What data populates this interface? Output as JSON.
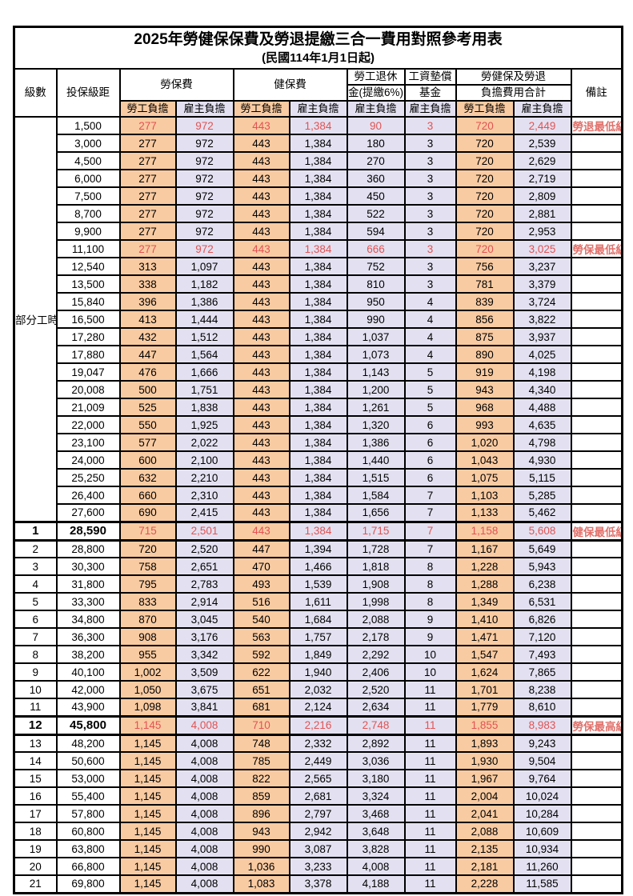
{
  "title": "2025年勞健保保費及勞退提繳三合一費用對照參考用表",
  "subtitle": "(民國114年1月1日起)",
  "header": {
    "level": "級數",
    "bracket": "投保級距",
    "labor_insurance": "勞保費",
    "health_insurance": "健保費",
    "pension_line1": "勞工退休",
    "pension_line2": "金(提繳6%)",
    "wage_fund_line1": "工資墊償",
    "wage_fund_line2": "基金",
    "total_line1": "勞健保及勞退",
    "total_line2": "負擔費用合計",
    "remark": "備註",
    "employee_share": "勞工負擔",
    "employer_share": "雇主負擔"
  },
  "part_time": {
    "label": "部分工時",
    "span": 23
  },
  "colors": {
    "employee_fill": "#F9CBA2",
    "employer_fill": "#E3E1F1",
    "highlight_red": "#E15353",
    "remark_red": "#E0716B",
    "border": "#000000"
  },
  "columns_order": [
    "級數",
    "投保級距",
    "勞保費-勞工負擔",
    "勞保費-雇主負擔",
    "健保費-勞工負擔",
    "健保費-雇主負擔",
    "勞工退休金(提繳6%)-雇主負擔",
    "工資墊償基金-雇主負擔",
    "合計-勞工負擔",
    "合計-雇主負擔",
    "備註"
  ],
  "rows": [
    {
      "lv": "",
      "amt": "1,500",
      "v": [
        "277",
        "972",
        "443",
        "1,384",
        "90",
        "3",
        "720",
        "2,449"
      ],
      "rm": "勞退最低級距",
      "red": true,
      "key": false
    },
    {
      "lv": "",
      "amt": "3,000",
      "v": [
        "277",
        "972",
        "443",
        "1,384",
        "180",
        "3",
        "720",
        "2,539"
      ],
      "rm": "",
      "red": false,
      "key": false
    },
    {
      "lv": "",
      "amt": "4,500",
      "v": [
        "277",
        "972",
        "443",
        "1,384",
        "270",
        "3",
        "720",
        "2,629"
      ],
      "rm": "",
      "red": false,
      "key": false
    },
    {
      "lv": "",
      "amt": "6,000",
      "v": [
        "277",
        "972",
        "443",
        "1,384",
        "360",
        "3",
        "720",
        "2,719"
      ],
      "rm": "",
      "red": false,
      "key": false
    },
    {
      "lv": "",
      "amt": "7,500",
      "v": [
        "277",
        "972",
        "443",
        "1,384",
        "450",
        "3",
        "720",
        "2,809"
      ],
      "rm": "",
      "red": false,
      "key": false
    },
    {
      "lv": "",
      "amt": "8,700",
      "v": [
        "277",
        "972",
        "443",
        "1,384",
        "522",
        "3",
        "720",
        "2,881"
      ],
      "rm": "",
      "red": false,
      "key": false
    },
    {
      "lv": "",
      "amt": "9,900",
      "v": [
        "277",
        "972",
        "443",
        "1,384",
        "594",
        "3",
        "720",
        "2,953"
      ],
      "rm": "",
      "red": false,
      "key": false
    },
    {
      "lv": "",
      "amt": "11,100",
      "v": [
        "277",
        "972",
        "443",
        "1,384",
        "666",
        "3",
        "720",
        "3,025"
      ],
      "rm": "勞保最低級距",
      "red": true,
      "key": false
    },
    {
      "lv": "",
      "amt": "12,540",
      "v": [
        "313",
        "1,097",
        "443",
        "1,384",
        "752",
        "3",
        "756",
        "3,237"
      ],
      "rm": "",
      "red": false,
      "key": false
    },
    {
      "lv": "",
      "amt": "13,500",
      "v": [
        "338",
        "1,182",
        "443",
        "1,384",
        "810",
        "3",
        "781",
        "3,379"
      ],
      "rm": "",
      "red": false,
      "key": false
    },
    {
      "lv": "",
      "amt": "15,840",
      "v": [
        "396",
        "1,386",
        "443",
        "1,384",
        "950",
        "4",
        "839",
        "3,724"
      ],
      "rm": "",
      "red": false,
      "key": false
    },
    {
      "lv": "",
      "amt": "16,500",
      "v": [
        "413",
        "1,444",
        "443",
        "1,384",
        "990",
        "4",
        "856",
        "3,822"
      ],
      "rm": "",
      "red": false,
      "key": false
    },
    {
      "lv": "",
      "amt": "17,280",
      "v": [
        "432",
        "1,512",
        "443",
        "1,384",
        "1,037",
        "4",
        "875",
        "3,937"
      ],
      "rm": "",
      "red": false,
      "key": false
    },
    {
      "lv": "",
      "amt": "17,880",
      "v": [
        "447",
        "1,564",
        "443",
        "1,384",
        "1,073",
        "4",
        "890",
        "4,025"
      ],
      "rm": "",
      "red": false,
      "key": false
    },
    {
      "lv": "",
      "amt": "19,047",
      "v": [
        "476",
        "1,666",
        "443",
        "1,384",
        "1,143",
        "5",
        "919",
        "4,198"
      ],
      "rm": "",
      "red": false,
      "key": false
    },
    {
      "lv": "",
      "amt": "20,008",
      "v": [
        "500",
        "1,751",
        "443",
        "1,384",
        "1,200",
        "5",
        "943",
        "4,340"
      ],
      "rm": "",
      "red": false,
      "key": false
    },
    {
      "lv": "",
      "amt": "21,009",
      "v": [
        "525",
        "1,838",
        "443",
        "1,384",
        "1,261",
        "5",
        "968",
        "4,488"
      ],
      "rm": "",
      "red": false,
      "key": false
    },
    {
      "lv": "",
      "amt": "22,000",
      "v": [
        "550",
        "1,925",
        "443",
        "1,384",
        "1,320",
        "6",
        "993",
        "4,635"
      ],
      "rm": "",
      "red": false,
      "key": false
    },
    {
      "lv": "",
      "amt": "23,100",
      "v": [
        "577",
        "2,022",
        "443",
        "1,384",
        "1,386",
        "6",
        "1,020",
        "4,798"
      ],
      "rm": "",
      "red": false,
      "key": false
    },
    {
      "lv": "",
      "amt": "24,000",
      "v": [
        "600",
        "2,100",
        "443",
        "1,384",
        "1,440",
        "6",
        "1,043",
        "4,930"
      ],
      "rm": "",
      "red": false,
      "key": false
    },
    {
      "lv": "",
      "amt": "25,250",
      "v": [
        "632",
        "2,210",
        "443",
        "1,384",
        "1,515",
        "6",
        "1,075",
        "5,115"
      ],
      "rm": "",
      "red": false,
      "key": false
    },
    {
      "lv": "",
      "amt": "26,400",
      "v": [
        "660",
        "2,310",
        "443",
        "1,384",
        "1,584",
        "7",
        "1,103",
        "5,285"
      ],
      "rm": "",
      "red": false,
      "key": false
    },
    {
      "lv": "",
      "amt": "27,600",
      "v": [
        "690",
        "2,415",
        "443",
        "1,384",
        "1,656",
        "7",
        "1,133",
        "5,462"
      ],
      "rm": "",
      "red": false,
      "key": false
    },
    {
      "lv": "1",
      "amt": "28,590",
      "v": [
        "715",
        "2,501",
        "443",
        "1,384",
        "1,715",
        "7",
        "1,158",
        "5,608"
      ],
      "rm": "健保最低級距",
      "red": true,
      "key": true
    },
    {
      "lv": "2",
      "amt": "28,800",
      "v": [
        "720",
        "2,520",
        "447",
        "1,394",
        "1,728",
        "7",
        "1,167",
        "5,649"
      ],
      "rm": "",
      "red": false,
      "key": false
    },
    {
      "lv": "3",
      "amt": "30,300",
      "v": [
        "758",
        "2,651",
        "470",
        "1,466",
        "1,818",
        "8",
        "1,228",
        "5,943"
      ],
      "rm": "",
      "red": false,
      "key": false
    },
    {
      "lv": "4",
      "amt": "31,800",
      "v": [
        "795",
        "2,783",
        "493",
        "1,539",
        "1,908",
        "8",
        "1,288",
        "6,238"
      ],
      "rm": "",
      "red": false,
      "key": false
    },
    {
      "lv": "5",
      "amt": "33,300",
      "v": [
        "833",
        "2,914",
        "516",
        "1,611",
        "1,998",
        "8",
        "1,349",
        "6,531"
      ],
      "rm": "",
      "red": false,
      "key": false
    },
    {
      "lv": "6",
      "amt": "34,800",
      "v": [
        "870",
        "3,045",
        "540",
        "1,684",
        "2,088",
        "9",
        "1,410",
        "6,826"
      ],
      "rm": "",
      "red": false,
      "key": false
    },
    {
      "lv": "7",
      "amt": "36,300",
      "v": [
        "908",
        "3,176",
        "563",
        "1,757",
        "2,178",
        "9",
        "1,471",
        "7,120"
      ],
      "rm": "",
      "red": false,
      "key": false
    },
    {
      "lv": "8",
      "amt": "38,200",
      "v": [
        "955",
        "3,342",
        "592",
        "1,849",
        "2,292",
        "10",
        "1,547",
        "7,493"
      ],
      "rm": "",
      "red": false,
      "key": false
    },
    {
      "lv": "9",
      "amt": "40,100",
      "v": [
        "1,002",
        "3,509",
        "622",
        "1,940",
        "2,406",
        "10",
        "1,624",
        "7,865"
      ],
      "rm": "",
      "red": false,
      "key": false
    },
    {
      "lv": "10",
      "amt": "42,000",
      "v": [
        "1,050",
        "3,675",
        "651",
        "2,032",
        "2,520",
        "11",
        "1,701",
        "8,238"
      ],
      "rm": "",
      "red": false,
      "key": false
    },
    {
      "lv": "11",
      "amt": "43,900",
      "v": [
        "1,098",
        "3,841",
        "681",
        "2,124",
        "2,634",
        "11",
        "1,779",
        "8,610"
      ],
      "rm": "",
      "red": false,
      "key": false
    },
    {
      "lv": "12",
      "amt": "45,800",
      "v": [
        "1,145",
        "4,008",
        "710",
        "2,216",
        "2,748",
        "11",
        "1,855",
        "8,983"
      ],
      "rm": "勞保最高級距",
      "red": true,
      "key": true
    },
    {
      "lv": "13",
      "amt": "48,200",
      "v": [
        "1,145",
        "4,008",
        "748",
        "2,332",
        "2,892",
        "11",
        "1,893",
        "9,243"
      ],
      "rm": "",
      "red": false,
      "key": false
    },
    {
      "lv": "14",
      "amt": "50,600",
      "v": [
        "1,145",
        "4,008",
        "785",
        "2,449",
        "3,036",
        "11",
        "1,930",
        "9,504"
      ],
      "rm": "",
      "red": false,
      "key": false
    },
    {
      "lv": "15",
      "amt": "53,000",
      "v": [
        "1,145",
        "4,008",
        "822",
        "2,565",
        "3,180",
        "11",
        "1,967",
        "9,764"
      ],
      "rm": "",
      "red": false,
      "key": false
    },
    {
      "lv": "16",
      "amt": "55,400",
      "v": [
        "1,145",
        "4,008",
        "859",
        "2,681",
        "3,324",
        "11",
        "2,004",
        "10,024"
      ],
      "rm": "",
      "red": false,
      "key": false
    },
    {
      "lv": "17",
      "amt": "57,800",
      "v": [
        "1,145",
        "4,008",
        "896",
        "2,797",
        "3,468",
        "11",
        "2,041",
        "10,284"
      ],
      "rm": "",
      "red": false,
      "key": false
    },
    {
      "lv": "18",
      "amt": "60,800",
      "v": [
        "1,145",
        "4,008",
        "943",
        "2,942",
        "3,648",
        "11",
        "2,088",
        "10,609"
      ],
      "rm": "",
      "red": false,
      "key": false
    },
    {
      "lv": "19",
      "amt": "63,800",
      "v": [
        "1,145",
        "4,008",
        "990",
        "3,087",
        "3,828",
        "11",
        "2,135",
        "10,934"
      ],
      "rm": "",
      "red": false,
      "key": false
    },
    {
      "lv": "20",
      "amt": "66,800",
      "v": [
        "1,145",
        "4,008",
        "1,036",
        "3,233",
        "4,008",
        "11",
        "2,181",
        "11,260"
      ],
      "rm": "",
      "red": false,
      "key": false
    },
    {
      "lv": "21",
      "amt": "69,800",
      "v": [
        "1,145",
        "4,008",
        "1,083",
        "3,378",
        "4,188",
        "11",
        "2,228",
        "11,585"
      ],
      "rm": "",
      "red": false,
      "key": false
    }
  ]
}
